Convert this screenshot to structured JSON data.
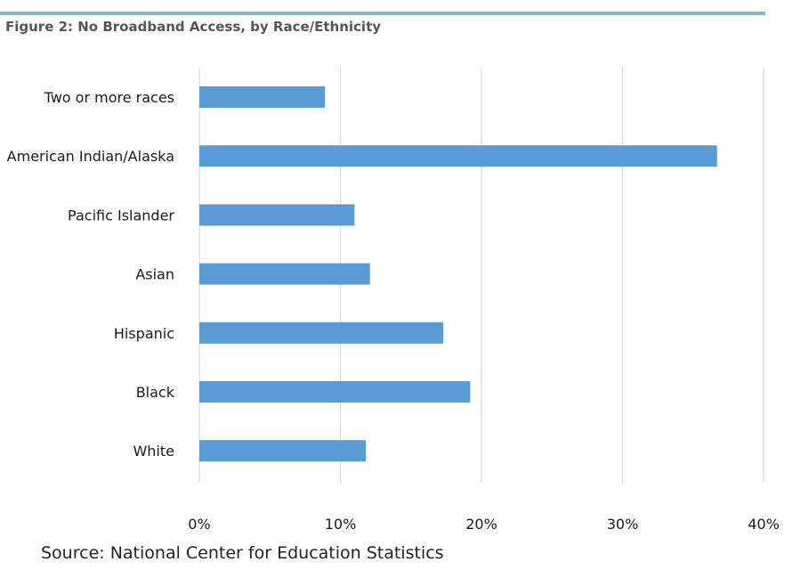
{
  "header": {
    "title": "Figure 2: No Broadband Access, by Race/Ethnicity",
    "rule_color": "#86b7c7"
  },
  "footer": {
    "source": "Source: National Center for Education Statistics"
  },
  "chart_data": {
    "type": "bar",
    "orientation": "horizontal",
    "categories": [
      "Two or more races",
      "American Indian/Alaska",
      "Pacific Islander",
      "Asian",
      "Hispanic",
      "Black",
      "White"
    ],
    "values": [
      8.9,
      36.7,
      11.0,
      12.1,
      17.3,
      19.2,
      11.8
    ],
    "xlim": [
      0,
      40
    ],
    "x_ticks": [
      0,
      10,
      20,
      30,
      40
    ],
    "x_tick_labels": [
      "0%",
      "10%",
      "20%",
      "30%",
      "40%"
    ],
    "grid": "vertical",
    "legend": "none",
    "bar_color": "#5b9bd5",
    "grid_color": "#d9d9d9"
  }
}
